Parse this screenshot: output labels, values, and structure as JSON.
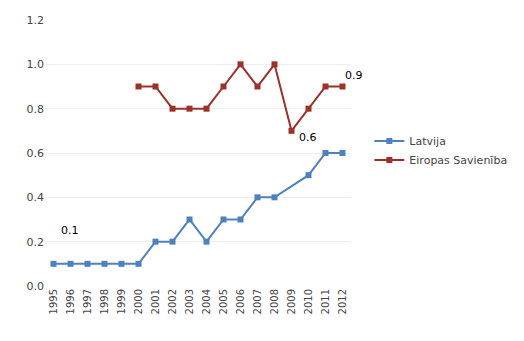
{
  "chart_data": {
    "type": "line",
    "series": [
      {
        "name": "Latvija",
        "color": "#4F81BD",
        "marker": "square",
        "x": [
          1995,
          1996,
          1997,
          1998,
          1999,
          2000,
          2001,
          2002,
          2003,
          2004,
          2005,
          2006,
          2007,
          2008,
          2010,
          2011,
          2012
        ],
        "values": [
          0.1,
          0.1,
          0.1,
          0.1,
          0.1,
          0.1,
          0.2,
          0.2,
          0.3,
          0.2,
          0.3,
          0.3,
          0.4,
          0.4,
          0.5,
          0.6,
          0.6
        ]
      },
      {
        "name": "Eiropas Savienība",
        "color": "#9C3128",
        "marker": "square",
        "x": [
          2000,
          2001,
          2002,
          2003,
          2004,
          2005,
          2006,
          2007,
          2008,
          2009,
          2010,
          2011,
          2012
        ],
        "values": [
          0.9,
          0.9,
          0.8,
          0.8,
          0.8,
          0.9,
          1.0,
          0.9,
          1.0,
          0.7,
          0.8,
          0.9,
          0.9
        ]
      }
    ],
    "annotations": [
      {
        "text": "0.1",
        "x": 1995.3,
        "y": 0.21
      },
      {
        "text": "0.6",
        "x": 2009.3,
        "y": 0.63
      },
      {
        "text": "0.9",
        "x": 2012.05,
        "y": 0.91
      }
    ],
    "xlim": [
      1994.5,
      2012.5
    ],
    "xticks": [
      1995,
      1996,
      1997,
      1998,
      1999,
      2000,
      2001,
      2002,
      2003,
      2004,
      2005,
      2006,
      2007,
      2008,
      2009,
      2010,
      2011,
      2012
    ],
    "ylim": [
      0.0,
      1.2
    ],
    "yticks": [
      {
        "value": 0.0,
        "label": "0.0"
      },
      0.2,
      0.4,
      0.6,
      0.8,
      {
        "value": 1.0,
        "label": "1.0"
      },
      1.2
    ],
    "grid": "y",
    "legend": "right"
  }
}
